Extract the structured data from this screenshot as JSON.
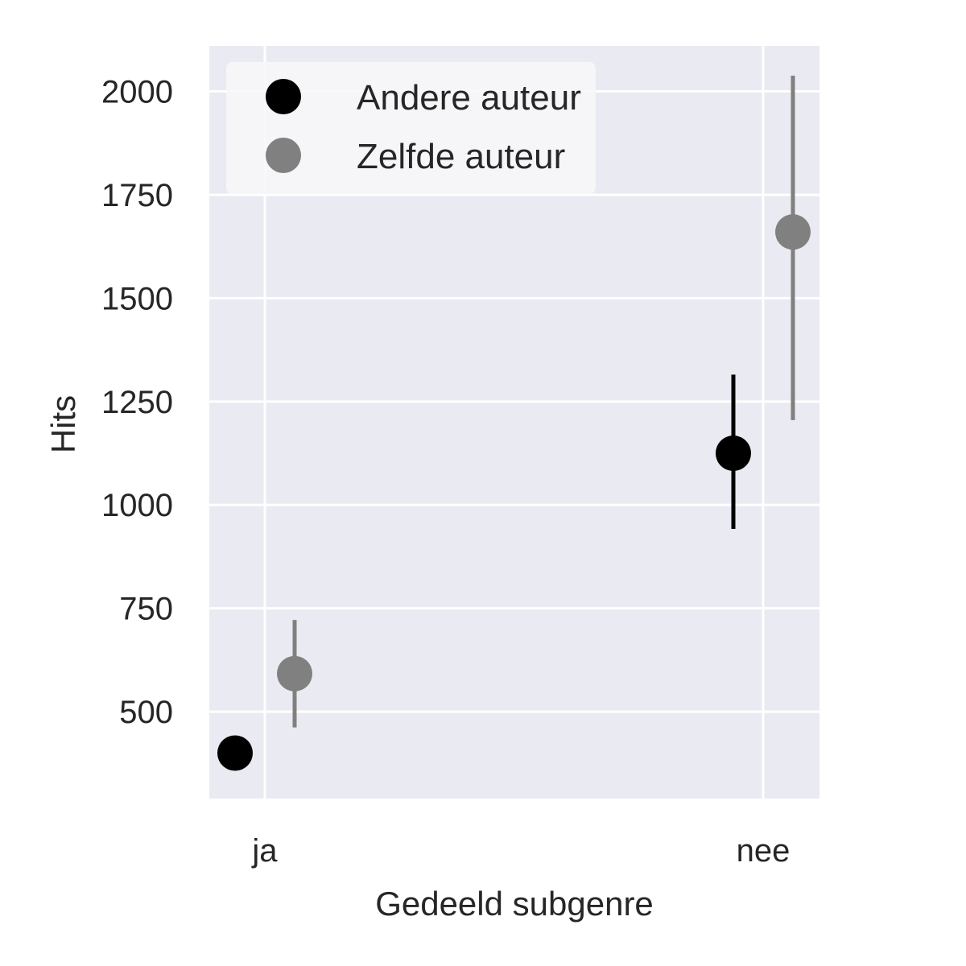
{
  "chart_data": {
    "type": "scatter",
    "xlabel": "Gedeeld subgenre",
    "ylabel": "Hits",
    "categories": [
      "ja",
      "nee"
    ],
    "ylim": [
      290,
      2110
    ],
    "yticks": [
      500,
      750,
      1000,
      1250,
      1500,
      1750,
      2000
    ],
    "grid": true,
    "legend_position": "top-left",
    "series": [
      {
        "name": "Andere auteur",
        "color": "#000000",
        "values": [
          400,
          1125
        ],
        "ci_low": [
          null,
          942
        ],
        "ci_high": [
          null,
          1315
        ]
      },
      {
        "name": "Zelfde auteur",
        "color": "#808080",
        "values": [
          592,
          1660
        ],
        "ci_low": [
          462,
          1205
        ],
        "ci_high": [
          722,
          2038
        ]
      }
    ]
  },
  "colors": {
    "plot_background": "#eaeaf2",
    "grid": "#ffffff",
    "legend_background": "#f7f7fa"
  }
}
